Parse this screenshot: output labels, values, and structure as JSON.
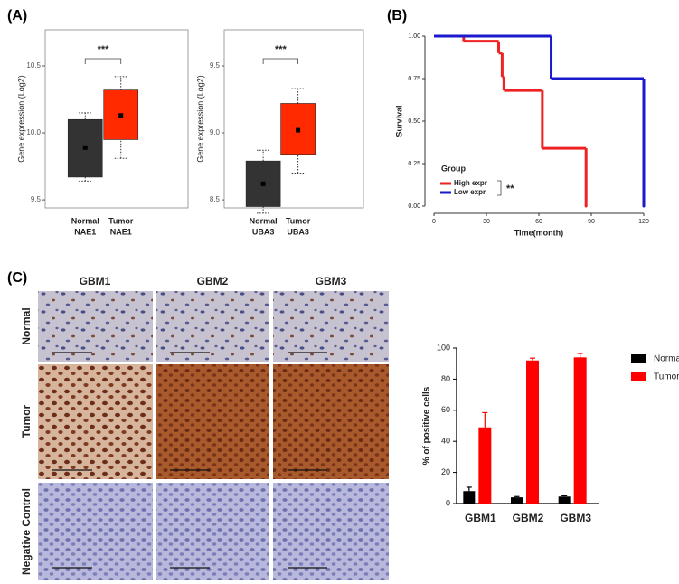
{
  "panel_labels": [
    "(A)",
    "(B)",
    "(C)"
  ],
  "chart_data": [
    {
      "type": "box",
      "y_label": "Gene expression (Log2)",
      "categories": [
        [
          "Normal",
          "NAE1"
        ],
        [
          "Tumor",
          "NAE1"
        ]
      ],
      "boxes": [
        {
          "whisker_low": 9.64,
          "q1": 9.67,
          "q3": 10.1,
          "whisker_high": 10.15,
          "mean": 9.89,
          "color": "#333333"
        },
        {
          "whisker_low": 9.81,
          "q1": 9.95,
          "q3": 10.32,
          "whisker_high": 10.42,
          "mean": 10.13,
          "color": "#ff2a00"
        }
      ],
      "ylim": [
        9.44,
        10.77
      ],
      "yticks": [
        9.5,
        {
          "value": 10,
          "label": "10.0"
        },
        10.5
      ],
      "annotation": "***"
    },
    {
      "type": "box",
      "y_label": "Gene expression (Log2)",
      "categories": [
        [
          "Normal",
          "UBA3"
        ],
        [
          "Tumor",
          "UBA3"
        ]
      ],
      "boxes": [
        {
          "whisker_low": 8.4,
          "q1": 8.45,
          "q3": 8.79,
          "whisker_high": 8.87,
          "mean": 8.62,
          "color": "#333333"
        },
        {
          "whisker_low": 8.7,
          "q1": 8.84,
          "q3": 9.22,
          "whisker_high": 9.33,
          "mean": 9.02,
          "color": "#ff2a00"
        }
      ],
      "ylim": [
        8.44,
        9.77
      ],
      "yticks": [
        8.5,
        {
          "value": 9,
          "label": "9.0"
        },
        9.5
      ],
      "annotation": "***"
    },
    {
      "type": "step",
      "x_label": "Time(month)",
      "y_label": "Survival",
      "legend_title": "Group",
      "series": [
        {
          "name": "High expr",
          "color": "#ee2222",
          "x": [
            0,
            17,
            37,
            39,
            40,
            62,
            87
          ],
          "values": [
            1,
            0.97,
            0.9,
            0.76,
            0.68,
            0.34,
            0
          ]
        },
        {
          "name": "Low expr",
          "color": "#1a1acc",
          "x": [
            0,
            67,
            120
          ],
          "values": [
            1,
            0.75,
            0
          ]
        }
      ],
      "xlim": [
        0,
        120
      ],
      "xticks": [
        0,
        30,
        60,
        90,
        120
      ],
      "ylim": [
        0,
        1
      ],
      "yticks": [
        {
          "value": 0,
          "label": "0.00"
        },
        {
          "value": 0.25,
          "label": "0.25"
        },
        {
          "value": 0.5,
          "label": "0.50"
        },
        {
          "value": 0.75,
          "label": "0.75"
        },
        {
          "value": 1,
          "label": "1.00"
        }
      ],
      "annotation": "**"
    },
    {
      "type": "bar",
      "y_label": "% of positive cells",
      "categories": [
        "GBM1",
        "GBM2",
        "GBM3"
      ],
      "series": [
        {
          "name": "Normal",
          "color": "#000000",
          "values": [
            8,
            4,
            4.5
          ],
          "errors": [
            2.5,
            0.5,
            0.5
          ]
        },
        {
          "name": "Tumor",
          "color": "#ff0000",
          "values": [
            49,
            92,
            94
          ],
          "errors": [
            9.5,
            1.5,
            2.5
          ]
        }
      ],
      "ylim": [
        0,
        100
      ],
      "yticks": [
        0,
        20,
        40,
        60,
        80,
        100
      ]
    }
  ],
  "image_grid": {
    "columns": [
      "GBM1",
      "GBM2",
      "GBM3"
    ],
    "rows": [
      "Normal",
      "Tumor",
      "Negative Control"
    ]
  }
}
